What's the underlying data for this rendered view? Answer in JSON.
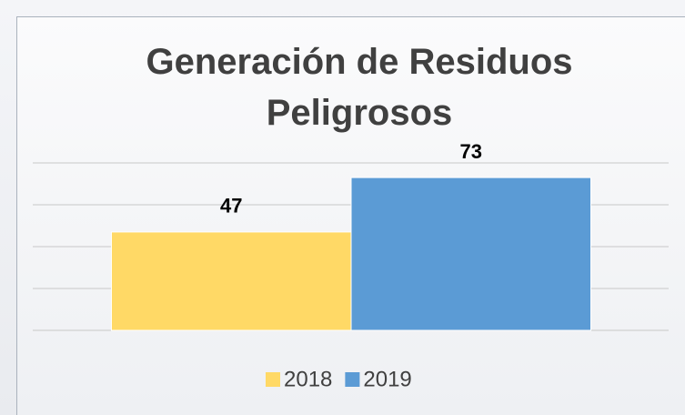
{
  "chart_data": {
    "type": "bar",
    "title": "Generación de Residuos Peligrosos",
    "categories": [
      null
    ],
    "series": [
      {
        "name": "2018",
        "color": "#ffd966",
        "values": [
          47
        ]
      },
      {
        "name": "2019",
        "color": "#5b9bd5",
        "values": [
          73
        ]
      }
    ],
    "ylim": [
      0,
      80
    ],
    "yticks": [
      0,
      20,
      40,
      60,
      80
    ],
    "grid": true,
    "legend": "bottom"
  }
}
